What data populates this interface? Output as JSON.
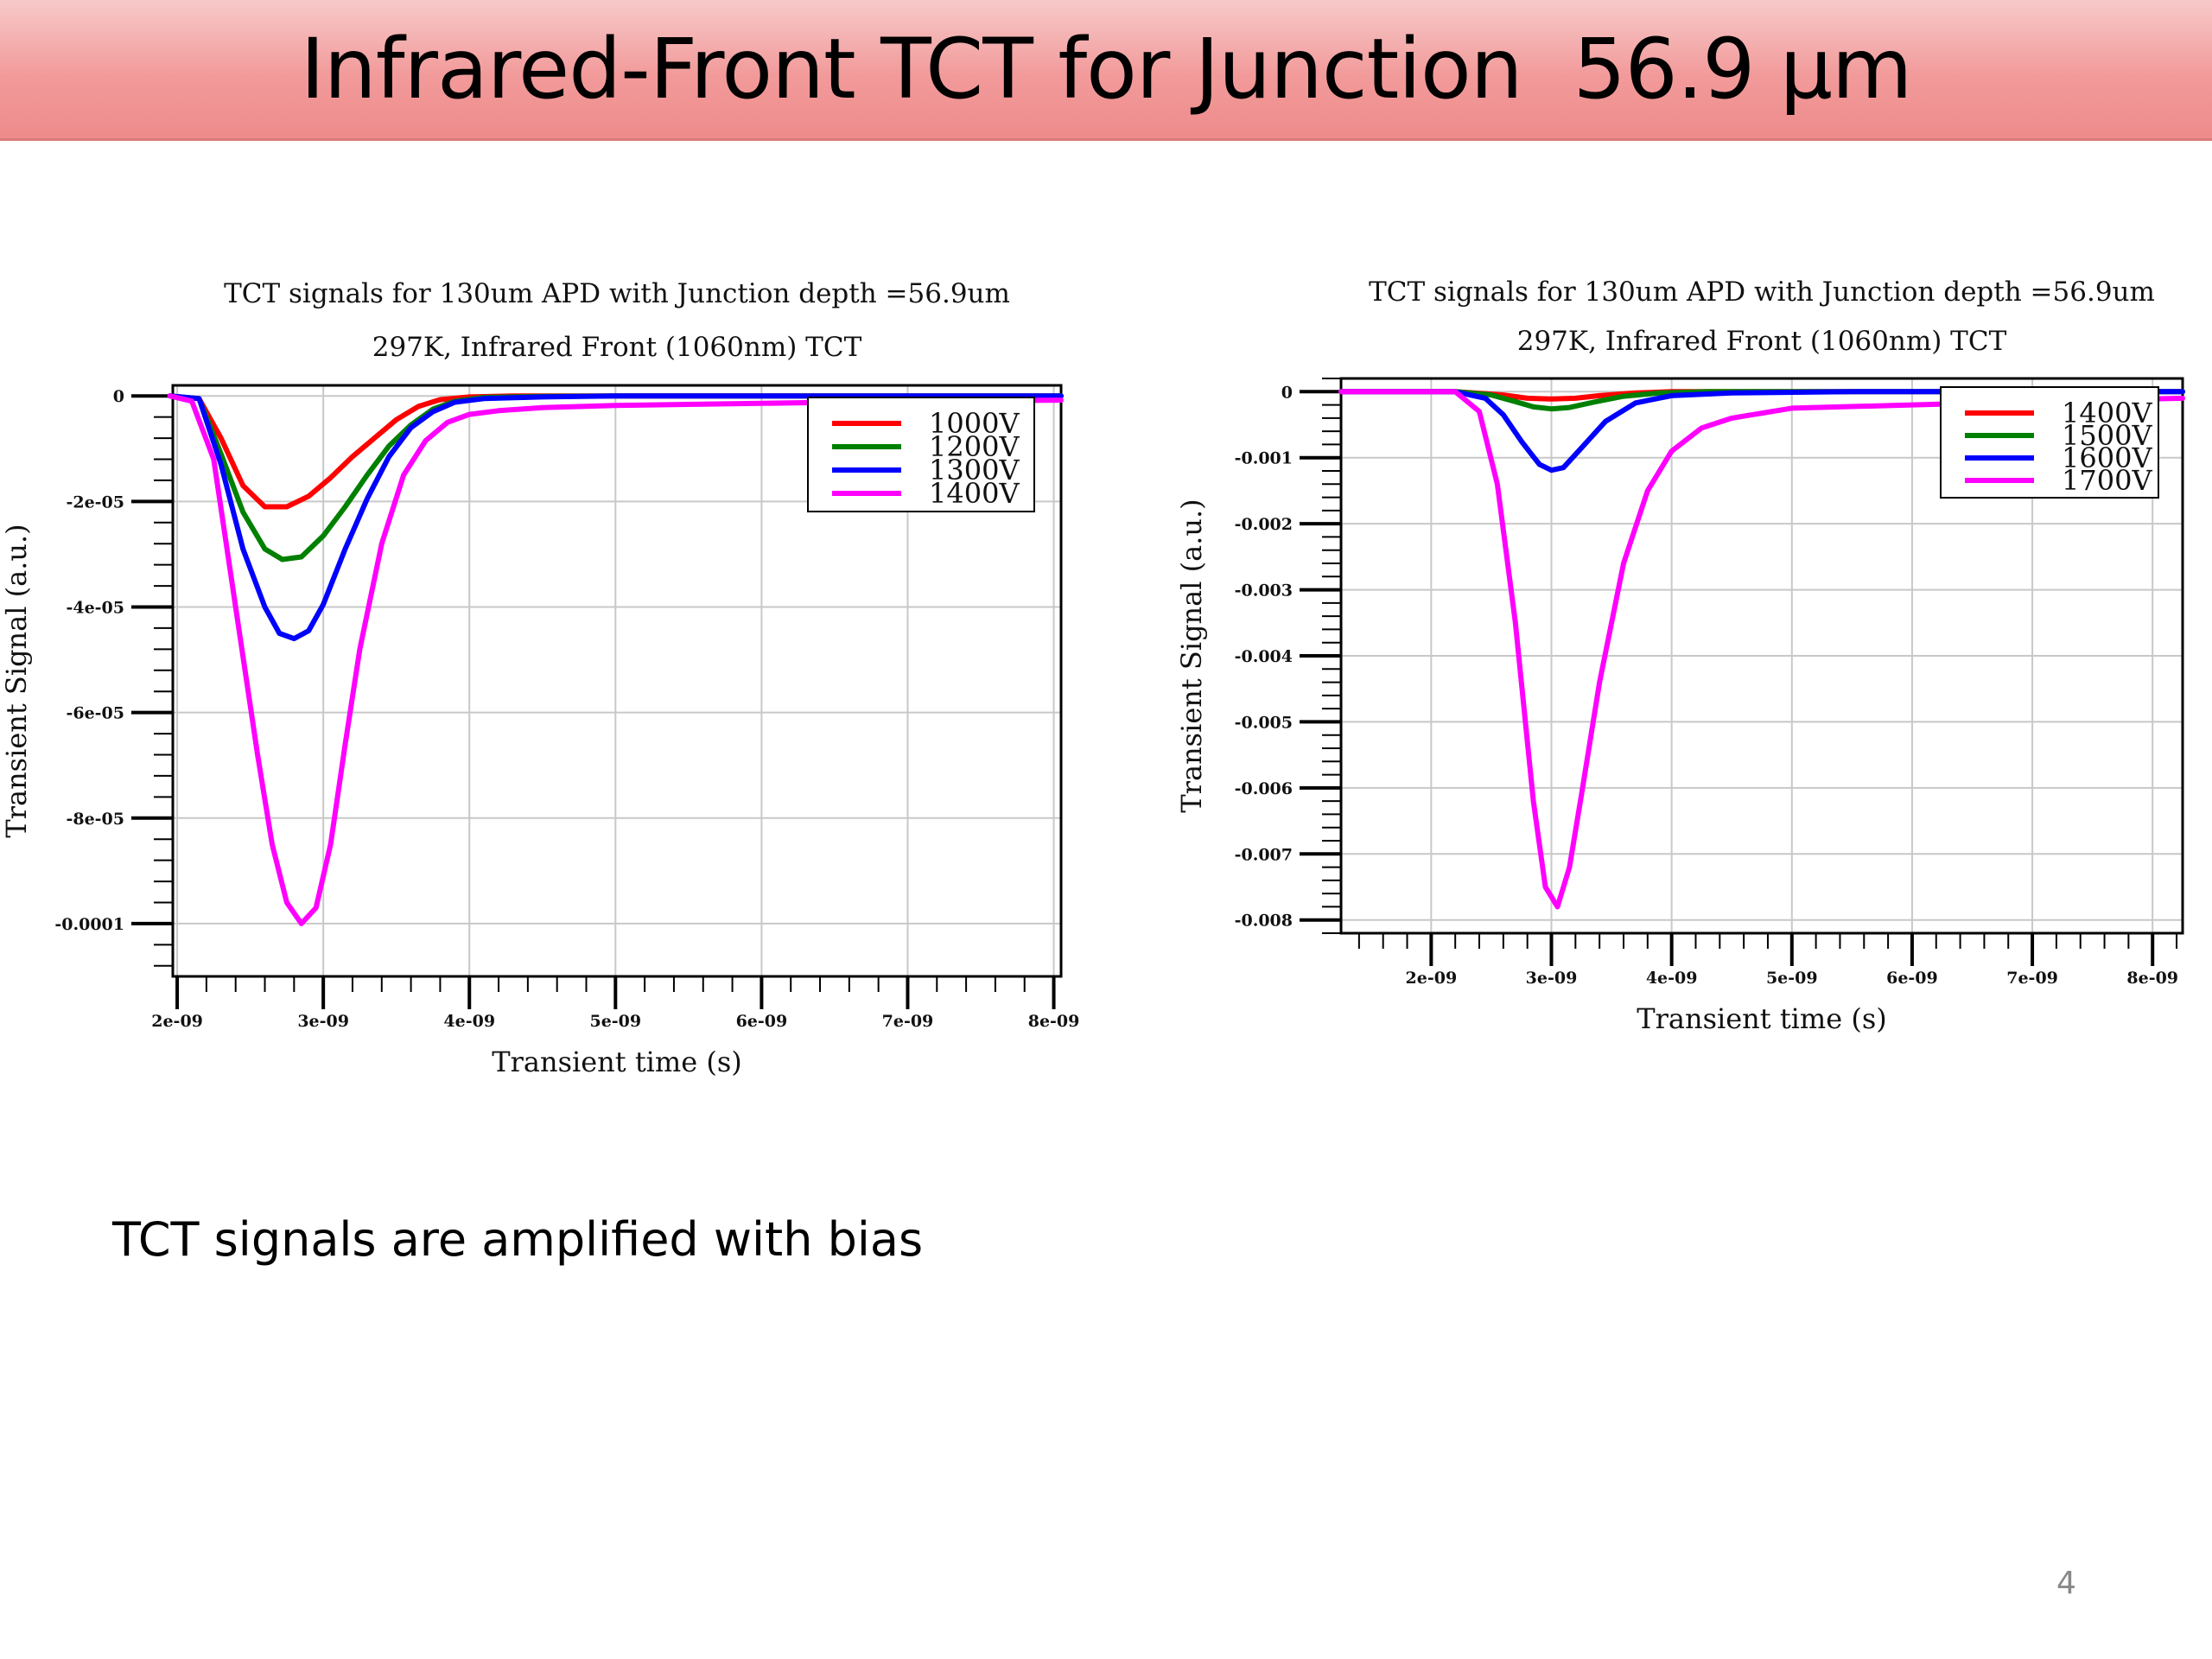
{
  "slide": {
    "title": "Infrared-Front TCT for Junction  56.9 µm",
    "note": "TCT signals are amplified with bias",
    "page_number": "4"
  },
  "chart_data": [
    {
      "type": "line",
      "title": "TCT signals for 130um APD with Junction depth =56.9um",
      "subtitle": "297K, Infrared Front (1060nm) TCT",
      "xlabel": "Transient time (s)",
      "ylabel": "Transient Signal (a.u.)",
      "xlim": [
        1.97e-09,
        8.05e-09
      ],
      "ylim": [
        -0.00011,
        2e-06
      ],
      "xticks": [
        2e-09,
        3e-09,
        4e-09,
        5e-09,
        6e-09,
        7e-09,
        8e-09
      ],
      "xtick_labels": [
        "2e-09",
        "3e-09",
        "4e-09",
        "5e-09",
        "6e-09",
        "7e-09",
        "8e-09"
      ],
      "yticks": [
        0,
        -2e-05,
        -4e-05,
        -6e-05,
        -8e-05,
        -0.0001
      ],
      "ytick_labels": [
        "0",
        "-2e-05",
        "-4e-05",
        "-6e-05",
        "-8e-05",
        "-0.0001"
      ],
      "grid": true,
      "legend_position": "top-right",
      "series": [
        {
          "name": "1000V",
          "color": "#ff0000",
          "x": [
            1.95e-09,
            2.15e-09,
            2.3e-09,
            2.45e-09,
            2.6e-09,
            2.75e-09,
            2.9e-09,
            3.05e-09,
            3.2e-09,
            3.35e-09,
            3.5e-09,
            3.65e-09,
            3.8e-09,
            4e-09,
            4.3e-09,
            5e-09,
            6e-09,
            7e-09,
            8.05e-09
          ],
          "y": [
            0,
            -5e-07,
            -8e-06,
            -1.7e-05,
            -2.1e-05,
            -2.1e-05,
            -1.9e-05,
            -1.55e-05,
            -1.15e-05,
            -8e-06,
            -4.5e-06,
            -2e-06,
            -7e-07,
            -2e-07,
            0,
            0,
            0,
            0,
            0
          ]
        },
        {
          "name": "1200V",
          "color": "#008000",
          "x": [
            1.95e-09,
            2.15e-09,
            2.3e-09,
            2.45e-09,
            2.6e-09,
            2.72e-09,
            2.85e-09,
            3e-09,
            3.15e-09,
            3.3e-09,
            3.45e-09,
            3.6e-09,
            3.75e-09,
            3.9e-09,
            4.1e-09,
            4.5e-09,
            5e-09,
            6e-09,
            7e-09,
            8.05e-09
          ],
          "y": [
            0,
            -5e-07,
            -1.1e-05,
            -2.2e-05,
            -2.9e-05,
            -3.1e-05,
            -3.05e-05,
            -2.65e-05,
            -2.1e-05,
            -1.5e-05,
            -9.5e-06,
            -5.5e-06,
            -2.5e-06,
            -1e-06,
            -3e-07,
            -1e-07,
            0,
            0,
            0,
            0
          ]
        },
        {
          "name": "1300V",
          "color": "#0000ff",
          "x": [
            1.95e-09,
            2.15e-09,
            2.3e-09,
            2.45e-09,
            2.6e-09,
            2.7e-09,
            2.8e-09,
            2.9e-09,
            3e-09,
            3.15e-09,
            3.3e-09,
            3.45e-09,
            3.6e-09,
            3.75e-09,
            3.9e-09,
            4.1e-09,
            4.5e-09,
            5e-09,
            6e-09,
            7e-09,
            8.05e-09
          ],
          "y": [
            0,
            -5e-07,
            -1.3e-05,
            -2.9e-05,
            -4e-05,
            -4.5e-05,
            -4.6e-05,
            -4.45e-05,
            -3.95e-05,
            -2.9e-05,
            -1.95e-05,
            -1.15e-05,
            -6e-06,
            -3e-06,
            -1.2e-06,
            -5e-07,
            -2e-07,
            0,
            0,
            0,
            0
          ]
        },
        {
          "name": "1400V",
          "color": "#ff00ff",
          "x": [
            1.95e-09,
            2.1e-09,
            2.25e-09,
            2.4e-09,
            2.55e-09,
            2.65e-09,
            2.75e-09,
            2.85e-09,
            2.95e-09,
            3.05e-09,
            3.15e-09,
            3.25e-09,
            3.4e-09,
            3.55e-09,
            3.7e-09,
            3.85e-09,
            4e-09,
            4.2e-09,
            4.5e-09,
            5e-09,
            6e-09,
            7e-09,
            8.05e-09
          ],
          "y": [
            0,
            -1e-06,
            -1.2e-05,
            -4e-05,
            -6.8e-05,
            -8.5e-05,
            -9.6e-05,
            -0.0001,
            -9.7e-05,
            -8.5e-05,
            -6.6e-05,
            -4.8e-05,
            -2.8e-05,
            -1.5e-05,
            -8.5e-06,
            -5e-06,
            -3.5e-06,
            -2.8e-06,
            -2.2e-06,
            -1.8e-06,
            -1.4e-06,
            -1e-06,
            -8e-07
          ]
        }
      ]
    },
    {
      "type": "line",
      "title": "TCT signals for 130um APD with Junction depth =56.9um",
      "subtitle": "297K, Infrared Front (1060nm) TCT",
      "xlabel": "Transient time (s)",
      "ylabel": "Transient Signal (a.u.)",
      "xlim": [
        1.25e-09,
        8.25e-09
      ],
      "ylim": [
        -0.0082,
        0.0002
      ],
      "xticks": [
        2e-09,
        3e-09,
        4e-09,
        5e-09,
        6e-09,
        7e-09,
        8e-09
      ],
      "xtick_labels": [
        "2e-09",
        "3e-09",
        "4e-09",
        "5e-09",
        "6e-09",
        "7e-09",
        "8e-09"
      ],
      "yticks": [
        0,
        -0.001,
        -0.002,
        -0.003,
        -0.004,
        -0.005,
        -0.006,
        -0.007,
        -0.008
      ],
      "ytick_labels": [
        "0",
        "-0.001",
        "-0.002",
        "-0.003",
        "-0.004",
        "-0.005",
        "-0.006",
        "-0.007",
        "-0.008"
      ],
      "grid": true,
      "legend_position": "top-right",
      "series": [
        {
          "name": "1400V",
          "color": "#ff0000",
          "x": [
            1.25e-09,
            2.2e-09,
            2.6e-09,
            2.8e-09,
            3e-09,
            3.2e-09,
            3.4e-09,
            3.7e-09,
            4e-09,
            8.25e-09
          ],
          "y": [
            0,
            0,
            -5e-05,
            -0.0001,
            -0.00011,
            -0.0001,
            -6e-05,
            -2e-05,
            0,
            0
          ]
        },
        {
          "name": "1500V",
          "color": "#008000",
          "x": [
            1.25e-09,
            2.2e-09,
            2.5e-09,
            2.7e-09,
            2.85e-09,
            3e-09,
            3.15e-09,
            3.35e-09,
            3.6e-09,
            3.9e-09,
            4.3e-09,
            8.25e-09
          ],
          "y": [
            0,
            0,
            -5e-05,
            -0.00015,
            -0.00023,
            -0.00026,
            -0.00024,
            -0.00016,
            -7e-05,
            -2e-05,
            0,
            0
          ]
        },
        {
          "name": "1600V",
          "color": "#0000ff",
          "x": [
            1.25e-09,
            2.2e-09,
            2.45e-09,
            2.6e-09,
            2.75e-09,
            2.9e-09,
            3e-09,
            3.1e-09,
            3.25e-09,
            3.45e-09,
            3.7e-09,
            4e-09,
            4.5e-09,
            5.5e-09,
            8.25e-09
          ],
          "y": [
            0,
            0,
            -0.0001,
            -0.00035,
            -0.00075,
            -0.0011,
            -0.00119,
            -0.00115,
            -0.00085,
            -0.00045,
            -0.00017,
            -6e-05,
            -2e-05,
            0,
            0
          ]
        },
        {
          "name": "1700V",
          "color": "#ff00ff",
          "x": [
            1.25e-09,
            2.2e-09,
            2.4e-09,
            2.55e-09,
            2.7e-09,
            2.85e-09,
            2.95e-09,
            3.05e-09,
            3.15e-09,
            3.25e-09,
            3.4e-09,
            3.6e-09,
            3.8e-09,
            4e-09,
            4.25e-09,
            4.5e-09,
            5e-09,
            6e-09,
            7e-09,
            8.25e-09
          ],
          "y": [
            0,
            0,
            -0.0003,
            -0.0014,
            -0.0035,
            -0.0062,
            -0.0075,
            -0.0078,
            -0.0072,
            -0.0061,
            -0.0044,
            -0.0026,
            -0.0015,
            -0.0009,
            -0.00055,
            -0.0004,
            -0.00025,
            -0.0002,
            -0.00015,
            -0.0001
          ]
        }
      ]
    }
  ]
}
